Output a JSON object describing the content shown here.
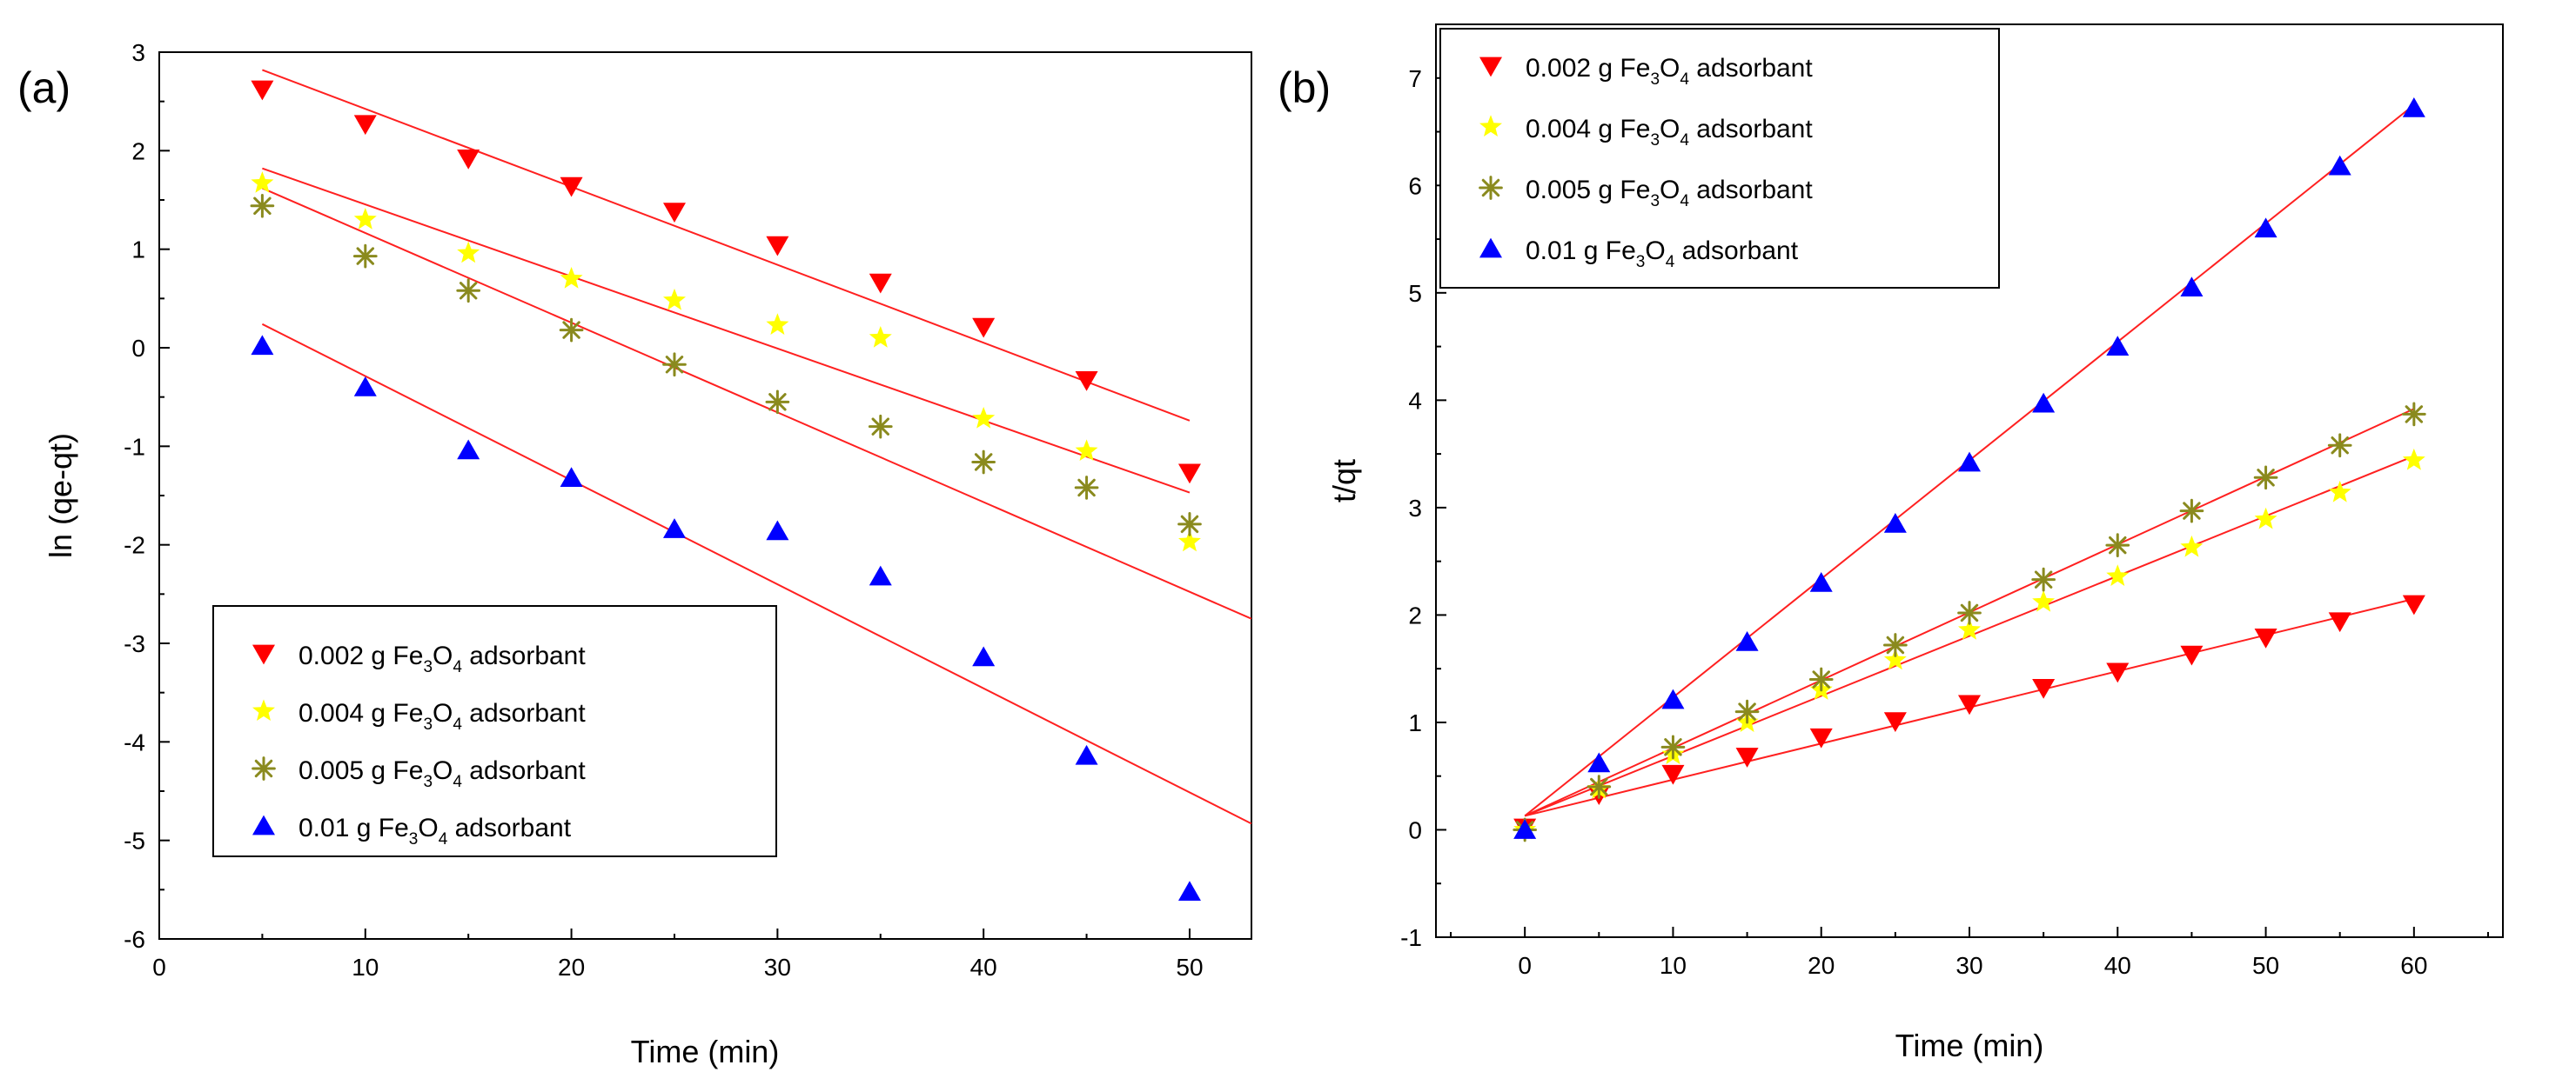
{
  "chart_data": [
    {
      "type": "scatter",
      "panel_label": "(a)",
      "xlabel": "Time (min)",
      "ylabel": "ln (qe-qt)",
      "xlim": [
        0,
        53
      ],
      "ylim": [
        -6,
        3
      ],
      "xticks": [
        0,
        10,
        20,
        30,
        40,
        50
      ],
      "yticks": [
        -6,
        -5,
        -4,
        -3,
        -2,
        -1,
        0,
        1,
        2,
        3
      ],
      "legend_position": "bottom-left",
      "series": [
        {
          "name": "0.002 g Fe3O4 adsorbant",
          "legend": {
            "pre": "0.002 g Fe",
            "sub1": "3",
            "mid": "O",
            "sub2": "4",
            "post": " adsorbant"
          },
          "marker": "triangle-down",
          "color": "#ff0000",
          "x": [
            5,
            10,
            15,
            20,
            25,
            30,
            35,
            40,
            45,
            50
          ],
          "y": [
            2.62,
            2.27,
            1.92,
            1.64,
            1.38,
            1.04,
            0.66,
            0.21,
            -0.33,
            -1.27
          ],
          "fit": {
            "x": [
              5,
              50
            ],
            "y": [
              2.82,
              -0.74
            ]
          }
        },
        {
          "name": "0.004 g Fe3O4 adsorbant",
          "legend": {
            "pre": "0.004 g Fe",
            "sub1": "3",
            "mid": "O",
            "sub2": "4",
            "post": " adsorbant"
          },
          "marker": "star",
          "color": "#ffff00",
          "x": [
            5,
            10,
            15,
            20,
            25,
            30,
            35,
            40,
            45,
            50
          ],
          "y": [
            1.67,
            1.3,
            0.96,
            0.7,
            0.48,
            0.23,
            0.1,
            -0.72,
            -1.05,
            -1.97
          ],
          "fit": {
            "x": [
              5,
              50
            ],
            "y": [
              1.82,
              -1.47
            ]
          }
        },
        {
          "name": "0.005 g Fe3O4 adsorbant",
          "legend": {
            "pre": "0.005 g Fe",
            "sub1": "3",
            "mid": "O",
            "sub2": "4",
            "post": " adsorbant"
          },
          "marker": "asterisk",
          "color": "#8a8a1e",
          "x": [
            5,
            10,
            15,
            20,
            25,
            30,
            35,
            40,
            45,
            50
          ],
          "y": [
            1.44,
            0.93,
            0.58,
            0.18,
            -0.17,
            -0.55,
            -0.8,
            -1.16,
            -1.42,
            -1.79
          ],
          "fit": {
            "x": [
              5,
              53
            ],
            "y": [
              1.62,
              -2.75
            ]
          }
        },
        {
          "name": "0.01 g Fe3O4 adsorbant",
          "legend": {
            "pre": "0.01 g Fe",
            "sub1": "3",
            "mid": "O",
            "sub2": "4",
            "post": " adsorbant"
          },
          "marker": "triangle-up",
          "color": "#0000ff",
          "x": [
            5,
            10,
            15,
            20,
            25,
            30,
            35,
            40,
            45,
            50
          ],
          "y": [
            0.02,
            -0.4,
            -1.04,
            -1.32,
            -1.84,
            -1.86,
            -2.32,
            -3.14,
            -4.14,
            -5.52
          ],
          "fit": {
            "x": [
              5,
              53
            ],
            "y": [
              0.24,
              -4.83
            ]
          }
        }
      ]
    },
    {
      "type": "scatter",
      "panel_label": "(b)",
      "xlabel": "Time (min)",
      "ylabel": "t/qt",
      "xlim": [
        -6,
        66
      ],
      "ylim": [
        -1,
        7.5
      ],
      "xticks": [
        0,
        10,
        20,
        30,
        40,
        50,
        60
      ],
      "yticks": [
        -1,
        0,
        1,
        2,
        3,
        4,
        5,
        6,
        7
      ],
      "legend_position": "top-left",
      "series": [
        {
          "name": "0.002 g Fe3O4 adsorbant",
          "legend": {
            "pre": "0.002 g Fe",
            "sub1": "3",
            "mid": "O",
            "sub2": "4",
            "post": " adsorbant"
          },
          "marker": "triangle-down",
          "color": "#ff0000",
          "x": [
            0,
            5,
            10,
            15,
            20,
            25,
            30,
            35,
            40,
            45,
            50,
            55,
            60
          ],
          "y": [
            0.02,
            0.33,
            0.52,
            0.68,
            0.86,
            1.01,
            1.17,
            1.32,
            1.47,
            1.63,
            1.79,
            1.94,
            2.1
          ],
          "fit": {
            "x": [
              0,
              60
            ],
            "y": [
              0.13,
              2.15
            ]
          }
        },
        {
          "name": "0.004 g Fe3O4 adsorbant",
          "legend": {
            "pre": "0.004 g Fe",
            "sub1": "3",
            "mid": "O",
            "sub2": "4",
            "post": " adsorbant"
          },
          "marker": "star",
          "color": "#ffff00",
          "x": [
            0,
            5,
            10,
            15,
            20,
            25,
            30,
            35,
            40,
            45,
            50,
            55,
            60
          ],
          "y": [
            0.0,
            0.38,
            0.7,
            1.0,
            1.3,
            1.58,
            1.86,
            2.12,
            2.36,
            2.63,
            2.89,
            3.14,
            3.44
          ],
          "fit": {
            "x": [
              0,
              60
            ],
            "y": [
              0.13,
              3.48
            ]
          }
        },
        {
          "name": "0.005 g Fe3O4 adsorbant",
          "legend": {
            "pre": "0.005 g Fe",
            "sub1": "3",
            "mid": "O",
            "sub2": "4",
            "post": " adsorbant"
          },
          "marker": "asterisk",
          "color": "#8a8a1e",
          "x": [
            0,
            5,
            10,
            15,
            20,
            25,
            30,
            35,
            40,
            45,
            50,
            55,
            60
          ],
          "y": [
            0.0,
            0.4,
            0.77,
            1.1,
            1.4,
            1.72,
            2.02,
            2.33,
            2.65,
            2.97,
            3.28,
            3.58,
            3.87
          ],
          "fit": {
            "x": [
              0,
              60
            ],
            "y": [
              0.13,
              3.92
            ]
          }
        },
        {
          "name": "0.01 g Fe3O4 adsorbant",
          "legend": {
            "pre": "0.01 g Fe",
            "sub1": "3",
            "mid": "O",
            "sub2": "4",
            "post": " adsorbant"
          },
          "marker": "triangle-up",
          "color": "#0000ff",
          "x": [
            0,
            5,
            10,
            15,
            20,
            25,
            30,
            35,
            40,
            45,
            50,
            55,
            60
          ],
          "y": [
            0.0,
            0.62,
            1.21,
            1.75,
            2.3,
            2.85,
            3.42,
            3.97,
            4.5,
            5.05,
            5.6,
            6.18,
            6.72
          ],
          "fit": {
            "x": [
              0,
              60
            ],
            "y": [
              0.13,
              6.75
            ]
          }
        }
      ]
    }
  ]
}
